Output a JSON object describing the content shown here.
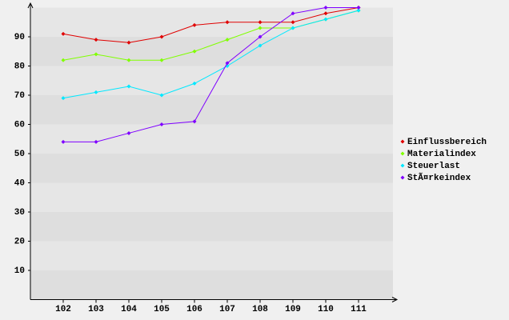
{
  "chart_data": {
    "type": "line",
    "categories": [
      "102",
      "103",
      "104",
      "105",
      "106",
      "107",
      "108",
      "109",
      "110",
      "111"
    ],
    "series": [
      {
        "name": "Einflussbereich",
        "color": "#e00000",
        "values": [
          91,
          89,
          88,
          90,
          94,
          95,
          95,
          95,
          98,
          100
        ]
      },
      {
        "name": "Materialindex",
        "color": "#80ff00",
        "values": [
          82,
          84,
          82,
          82,
          85,
          89,
          93,
          93,
          96,
          99
        ]
      },
      {
        "name": "Steuerlast",
        "color": "#00e8ff",
        "values": [
          69,
          71,
          73,
          70,
          74,
          80,
          87,
          93,
          96,
          99
        ]
      },
      {
        "name": "StÃ¤rkeindex",
        "color": "#7f00ff",
        "values": [
          54,
          54,
          57,
          60,
          61,
          81,
          90,
          98,
          100,
          100
        ]
      }
    ],
    "ylim": [
      0,
      100
    ],
    "yticks": [
      10,
      20,
      30,
      40,
      50,
      60,
      70,
      80,
      90
    ],
    "grid": true,
    "legend": "right"
  }
}
